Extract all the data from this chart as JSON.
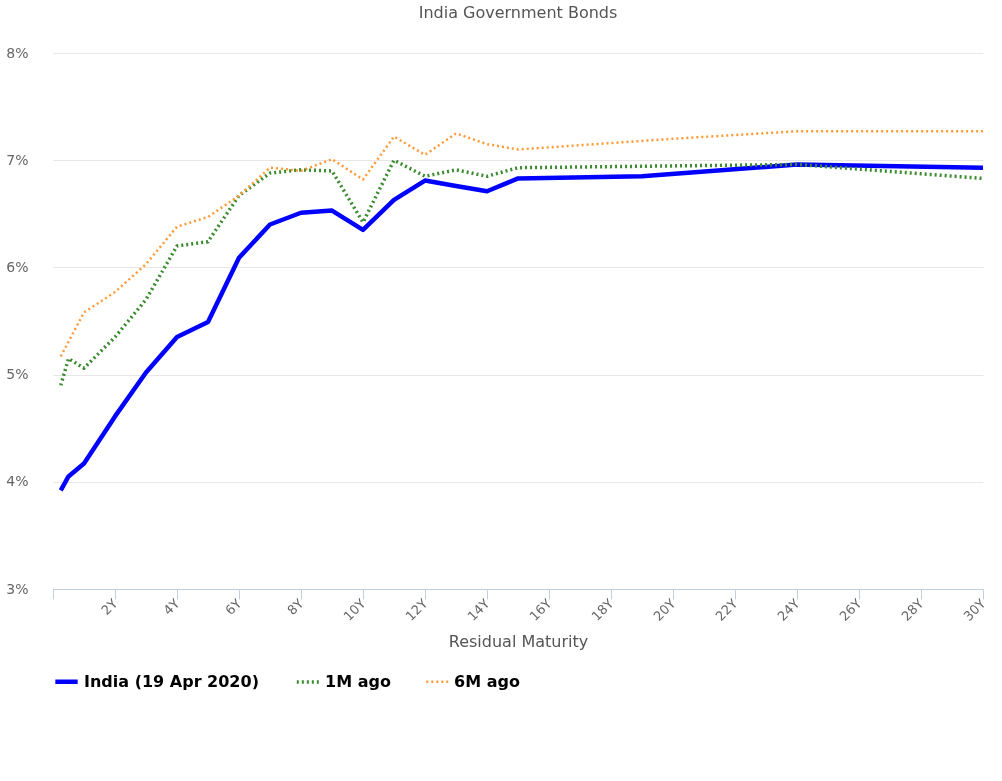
{
  "chart_data": {
    "type": "line",
    "title": "India Government Bonds",
    "xlabel": "Residual Maturity",
    "xlim": [
      0,
      30
    ],
    "xticks": [
      {
        "value": 0,
        "label": null
      },
      {
        "value": 2,
        "label": "2Y"
      },
      {
        "value": 4,
        "label": "4Y"
      },
      {
        "value": 6,
        "label": "6Y"
      },
      {
        "value": 8,
        "label": "8Y"
      },
      {
        "value": 10,
        "label": "10Y"
      },
      {
        "value": 12,
        "label": "12Y"
      },
      {
        "value": 14,
        "label": "14Y"
      },
      {
        "value": 16,
        "label": "16Y"
      },
      {
        "value": 18,
        "label": "18Y"
      },
      {
        "value": 20,
        "label": "20Y"
      },
      {
        "value": 22,
        "label": "22Y"
      },
      {
        "value": 24,
        "label": "24Y"
      },
      {
        "value": 26,
        "label": "26Y"
      },
      {
        "value": 28,
        "label": "28Y"
      },
      {
        "value": 30,
        "label": "30Y"
      }
    ],
    "ylim": [
      3,
      8
    ],
    "yticks": [
      {
        "value": 3,
        "label": "3%"
      },
      {
        "value": 4,
        "label": "4%"
      },
      {
        "value": 5,
        "label": "5%"
      },
      {
        "value": 6,
        "label": "6%"
      },
      {
        "value": 7,
        "label": "7%"
      },
      {
        "value": 8,
        "label": "8%"
      }
    ],
    "grid": "y",
    "legend": "bottom",
    "marker": "none",
    "series": [
      {
        "name": "India (19 Apr 2020)",
        "color": "#0000ff",
        "line_style": "solid",
        "x": [
          0.25,
          0.5,
          1,
          2,
          3,
          4,
          5,
          6,
          7,
          8,
          9,
          10,
          11,
          12,
          13,
          14,
          15,
          19,
          24,
          30
        ],
        "values": [
          3.92,
          4.05,
          4.17,
          4.61,
          5.02,
          5.35,
          5.49,
          6.09,
          6.4,
          6.51,
          6.53,
          6.35,
          6.63,
          6.81,
          6.76,
          6.71,
          6.83,
          6.85,
          6.96,
          6.93
        ]
      },
      {
        "name": "1M ago",
        "color": "#3a8a2e",
        "line_style": "dotted",
        "x": [
          0.25,
          0.5,
          1,
          2,
          3,
          4,
          5,
          6,
          7,
          8,
          9,
          10,
          11,
          12,
          13,
          14,
          15,
          24,
          30
        ],
        "values": [
          4.9,
          5.15,
          5.06,
          5.35,
          5.7,
          6.2,
          6.24,
          6.67,
          6.88,
          6.91,
          6.9,
          6.42,
          7.0,
          6.85,
          6.91,
          6.85,
          6.93,
          6.96,
          6.83
        ]
      },
      {
        "name": "6M ago",
        "color": "#ff9933",
        "line_style": "dotted",
        "x": [
          0.25,
          1,
          2,
          3,
          4,
          5,
          6,
          7,
          8,
          9,
          10,
          11,
          12,
          13,
          14,
          15,
          20,
          24,
          30
        ],
        "values": [
          5.17,
          5.58,
          5.77,
          6.03,
          6.38,
          6.47,
          6.67,
          6.93,
          6.9,
          7.01,
          6.82,
          7.22,
          7.05,
          7.25,
          7.15,
          7.1,
          7.2,
          7.27,
          7.27
        ]
      }
    ]
  }
}
